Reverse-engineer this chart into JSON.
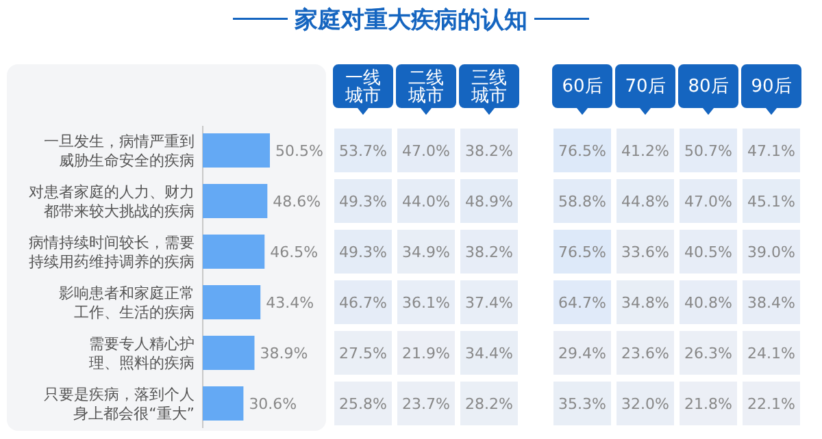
{
  "chart_data": [
    {
      "type": "bar",
      "orientation": "horizontal",
      "categories": [
        "一旦发生，病情严重到威胁生命安全的疾病",
        "对患者家庭的人力、财力都带来较大挑战的疾病",
        "病情持续时间较长，需要持续用药维持调养的疾病",
        "影响患者和家庭正常工作、生活的疾病",
        "需要专人精心护理、照料的疾病",
        "只要是疾病，落到个人身上都会很“重大”"
      ],
      "values": [
        50.5,
        48.6,
        46.5,
        43.4,
        38.9,
        30.6
      ],
      "value_labels": [
        "50.5%",
        "48.6%",
        "46.5%",
        "43.4%",
        "38.9%",
        "30.6%"
      ],
      "color": "#64a9f4",
      "tick_labels": "y"
    },
    {
      "type": "heatmap",
      "title": "家庭对重大疾病的认知",
      "categories": [
        "一线城市",
        "二线城市",
        "三线城市"
      ],
      "y_categories": [
        null,
        null,
        null,
        null,
        null,
        null
      ],
      "tick_labels": "x",
      "cells": [
        [
          53.7,
          47.0,
          38.2
        ],
        [
          49.3,
          44.0,
          48.9
        ],
        [
          49.3,
          34.9,
          38.2
        ],
        [
          46.7,
          36.1,
          37.4
        ],
        [
          27.5,
          21.9,
          34.4
        ],
        [
          25.8,
          23.7,
          28.2
        ]
      ],
      "cell_labels": [
        [
          "53.7%",
          "47.0%",
          "38.2%"
        ],
        [
          "49.3%",
          "44.0%",
          "48.9%"
        ],
        [
          "49.3%",
          "34.9%",
          "38.2%"
        ],
        [
          "46.7%",
          "36.1%",
          "37.4%"
        ],
        [
          "27.5%",
          "21.9%",
          "34.4%"
        ],
        [
          "25.8%",
          "23.7%",
          "28.2%"
        ]
      ]
    },
    {
      "type": "heatmap",
      "categories": [
        "60后",
        "70后",
        "80后",
        "90后"
      ],
      "y_categories": [
        null,
        null,
        null,
        null,
        null,
        null
      ],
      "tick_labels": "x",
      "cells": [
        [
          76.5,
          41.2,
          50.7,
          47.1
        ],
        [
          58.8,
          44.8,
          47.0,
          45.1
        ],
        [
          76.5,
          33.6,
          40.5,
          39.0
        ],
        [
          64.7,
          34.8,
          40.8,
          38.4
        ],
        [
          29.4,
          23.6,
          26.3,
          24.1
        ],
        [
          35.3,
          32.0,
          21.8,
          22.1
        ]
      ],
      "cell_labels": [
        [
          "76.5%",
          "41.2%",
          "50.7%",
          "47.1%"
        ],
        [
          "58.8%",
          "44.8%",
          "47.0%",
          "45.1%"
        ],
        [
          "76.5%",
          "33.6%",
          "40.5%",
          "39.0%"
        ],
        [
          "64.7%",
          "34.8%",
          "40.8%",
          "38.4%"
        ],
        [
          "29.4%",
          "23.6%",
          "26.3%",
          "24.1%"
        ],
        [
          "35.3%",
          "32.0%",
          "21.8%",
          "22.1%"
        ]
      ]
    }
  ]
}
